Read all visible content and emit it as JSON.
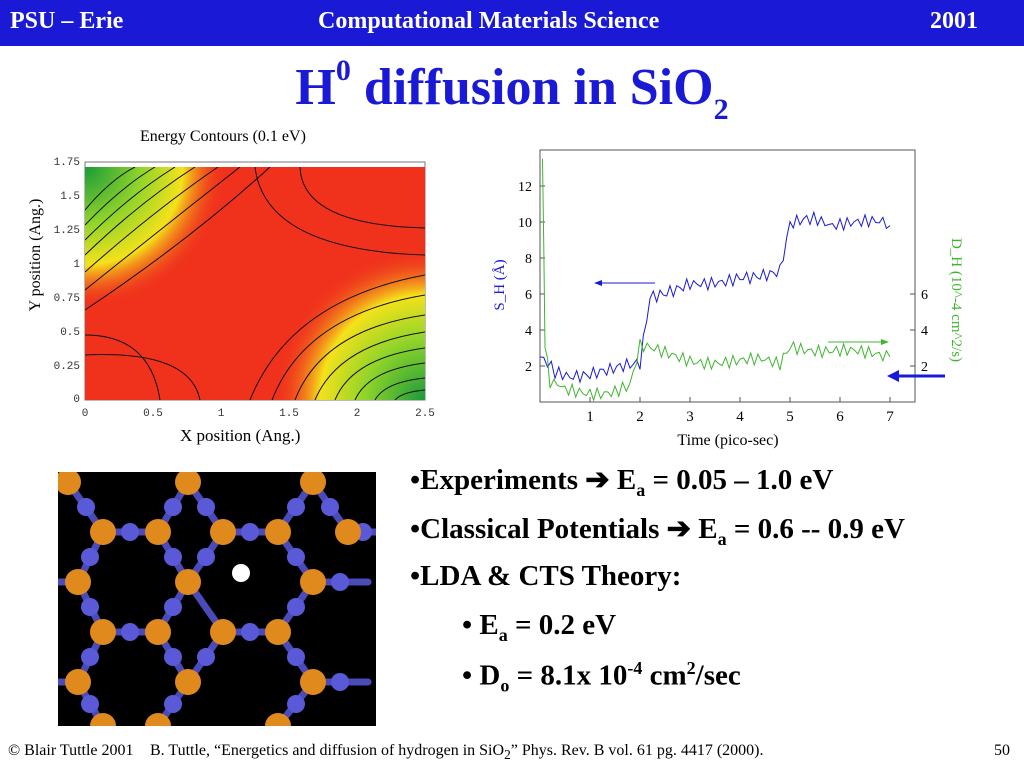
{
  "header": {
    "left": "PSU – Erie",
    "center": "Computational Materials Science",
    "right": "2001"
  },
  "slide_title": {
    "main": "H",
    "sup": "0",
    "rest": " diffusion in SiO",
    "sub": "2"
  },
  "contour_plot": {
    "title": "Energy Contours (0.1 eV)",
    "xlabel": "X position (Ang.)",
    "ylabel": "Y position (Ang.)",
    "xticks": [
      "0",
      "0.5",
      "1",
      "1.5",
      "2",
      "2.5"
    ],
    "yticks": [
      "0",
      "0.25",
      "0.5",
      "0.75",
      "1",
      "1.25",
      "1.5",
      "1.75"
    ]
  },
  "chart_data": {
    "type": "line",
    "xlabel": "Time (pico-sec)",
    "ylabel_left": "S_H (Å)",
    "ylabel_right": "D_H (10^-4 cm^2/s)",
    "xlim": [
      0,
      7.5
    ],
    "ylim": [
      0,
      14
    ],
    "xticks": [
      1,
      2,
      3,
      4,
      5,
      6,
      7
    ],
    "yticks_left": [
      2,
      4,
      6,
      8,
      10,
      12
    ],
    "yticks_right": [
      2,
      4,
      6
    ],
    "series": [
      {
        "color": "#1a1ad6",
        "x": [
          0,
          0.3,
          0.6,
          1.0,
          1.4,
          1.8,
          2.0,
          2.2,
          2.6,
          3.0,
          3.5,
          4.0,
          4.4,
          4.8,
          5.0,
          5.4,
          6.0,
          6.5,
          7.0
        ],
        "y": [
          2.5,
          1.5,
          1.6,
          1.5,
          1.6,
          2.0,
          2.2,
          6.0,
          6.3,
          6.5,
          6.8,
          7.0,
          7.2,
          7.3,
          9.8,
          10.0,
          10.0,
          9.9,
          9.8
        ]
      },
      {
        "color": "#3fb52e",
        "x": [
          0.05,
          0.1,
          0.2,
          0.5,
          1.0,
          1.5,
          1.8,
          2.0,
          2.5,
          3.0,
          3.5,
          4.0,
          4.5,
          4.8,
          5.0,
          5.5,
          6.0,
          6.5,
          7.0
        ],
        "y": [
          14,
          3.0,
          1.0,
          0.6,
          0.6,
          0.7,
          0.7,
          3.0,
          2.6,
          2.4,
          2.3,
          2.2,
          2.2,
          2.3,
          3.2,
          3.0,
          2.8,
          2.6,
          2.5
        ]
      }
    ]
  },
  "bullets": {
    "b1": {
      "bullet": "•",
      "text1": "Experiments ",
      "arrow": "➔",
      "text2": " E",
      "sub": "a",
      "text3": " = 0.05 – 1.0 eV"
    },
    "b2": {
      "bullet": "•",
      "text1": "Classical Potentials ",
      "arrow": "➔",
      "text2": " E",
      "sub": "a",
      "text3": " = 0.6 -- 0.9 eV"
    },
    "b3": {
      "bullet": "•",
      "text": "LDA &  CTS Theory:"
    },
    "b4": {
      "bullet": "•",
      "text1": " E",
      "sub": "a",
      "text2": " = 0.2 eV"
    },
    "b5": {
      "bullet": "•",
      "text1": " D",
      "sub": "o",
      "text2": " = 8.1x 10",
      "sup": "-4",
      "text3": " cm",
      "sup2": "2",
      "text4": "/sec"
    }
  },
  "footer": {
    "copyright": "© Blair Tuttle 2001",
    "reference_pre": "B. Tuttle, “Energetics and diffusion of hydrogen in SiO",
    "reference_sub": "2",
    "reference_post": "” Phys. Rev. B  vol. 61 pg. 4417 (2000).",
    "page": "50"
  },
  "colors": {
    "header_bg": "#1a1ad6",
    "title": "#1a1ad6",
    "blue_series": "#1a1ad6",
    "green_series": "#3fb52e",
    "silicon": "#e08a1e",
    "oxygen": "#5a5ad8",
    "hydrogen": "#ffffff"
  }
}
